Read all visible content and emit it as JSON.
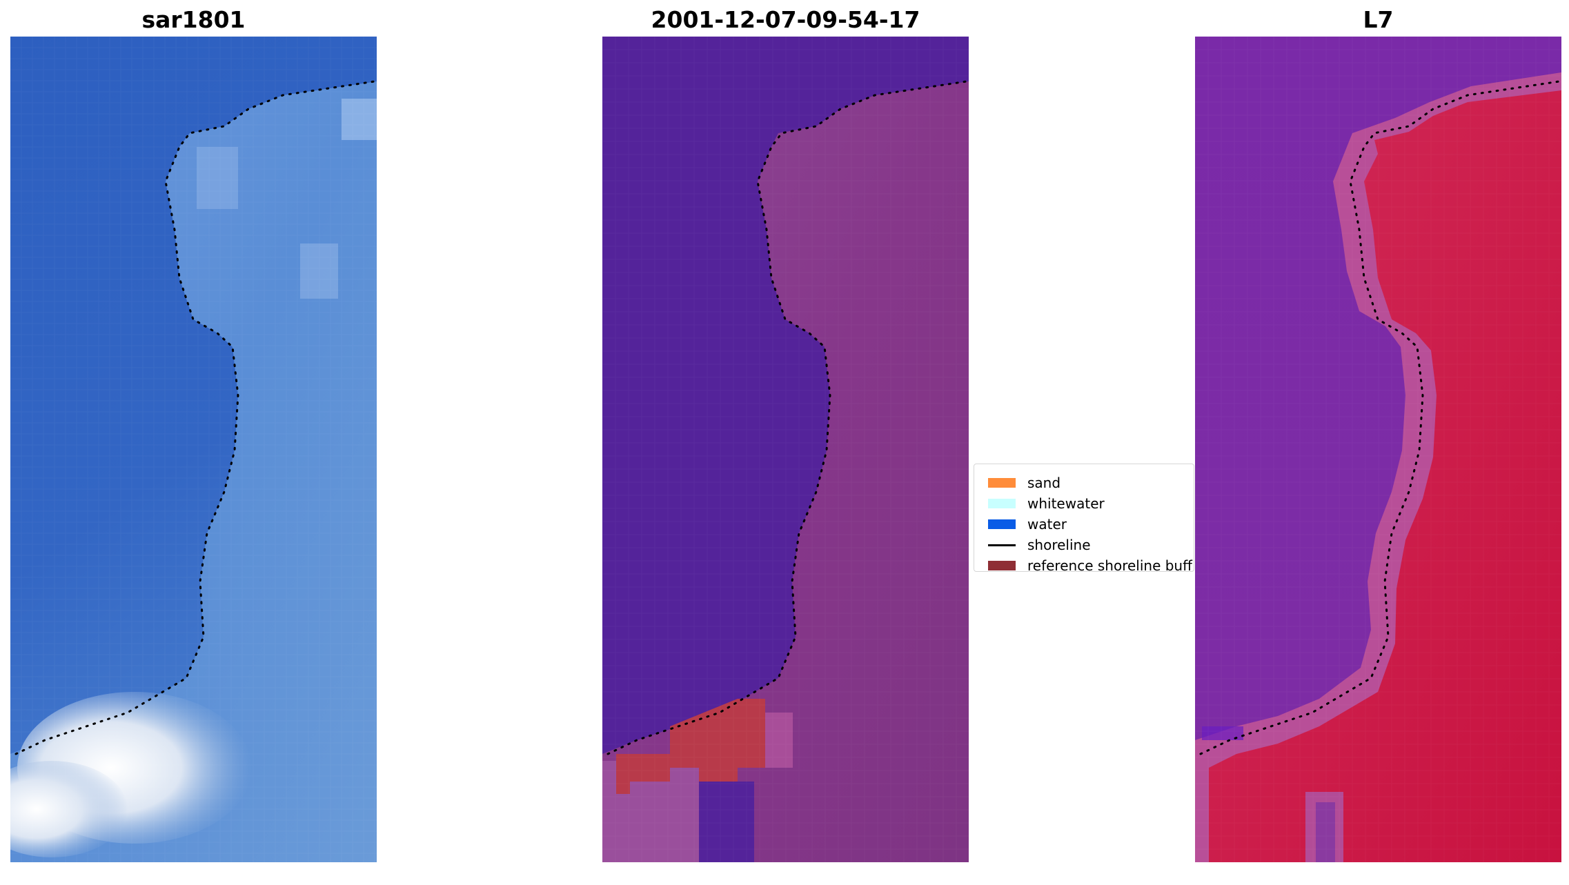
{
  "panels": [
    {
      "title": "sar1801"
    },
    {
      "title": "2001-12-07-09-54-17"
    },
    {
      "title": "L7"
    }
  ],
  "legend": {
    "items": [
      {
        "label": "sand",
        "color": "#ff8c3a",
        "kind": "patch"
      },
      {
        "label": "whitewater",
        "color": "#c8ffff",
        "kind": "patch"
      },
      {
        "label": "water",
        "color": "#0a5ce6",
        "kind": "patch"
      },
      {
        "label": "shoreline",
        "color": "#000000",
        "kind": "line"
      },
      {
        "label": "reference shoreline buff",
        "color": "#8f2e35",
        "kind": "patch"
      }
    ]
  },
  "colors": {
    "sea_blue": "#2f62c4",
    "land_light_blue": "#5b8ed8",
    "surf_white": "#f2f6fb",
    "classified_water": "#54239a",
    "classified_land": "#8a3d8e",
    "classified_buffer": "#b83a4a",
    "l7_water": "#7a2aa6",
    "l7_land": "#cf1d4e",
    "l7_transition": "#b84f98",
    "shoreline": "#000000"
  }
}
